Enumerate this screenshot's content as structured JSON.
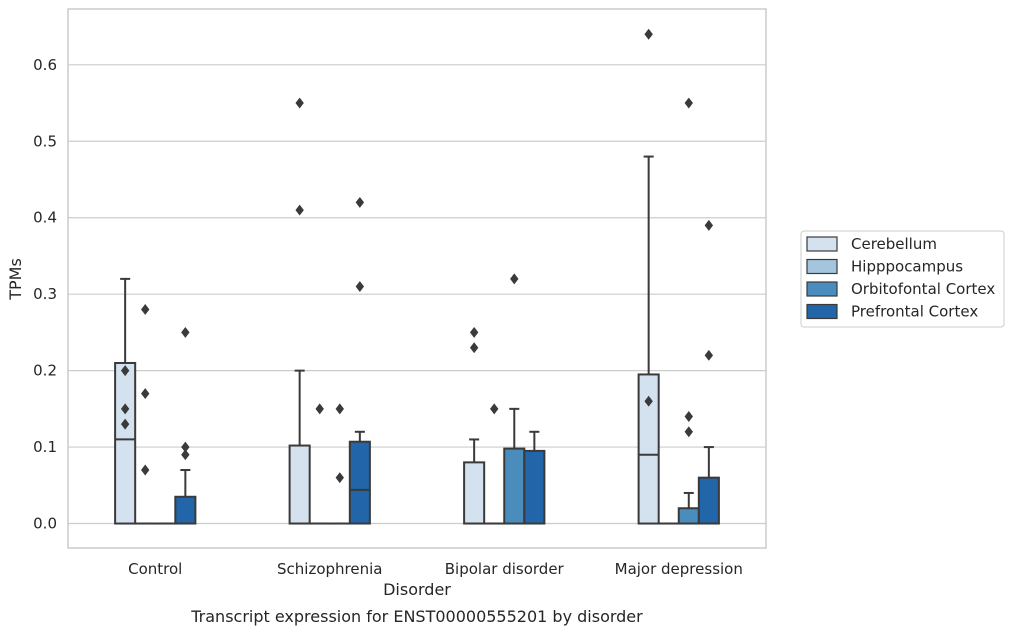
{
  "caption": "Transcript expression for ENST00000555201 by disorder",
  "chart_data": {
    "type": "boxplot",
    "xlabel": "Disorder",
    "ylabel": "TPMs",
    "ylim": [
      -0.032,
      0.673
    ],
    "yticks": [
      "0.0",
      "0.1",
      "0.2",
      "0.3",
      "0.4",
      "0.5",
      "0.6"
    ],
    "ytick_values": [
      0.0,
      0.1,
      0.2,
      0.3,
      0.4,
      0.5,
      0.6
    ],
    "grid": "horizontal",
    "legend_position": "right",
    "categories": [
      "Control",
      "Schizophrenia",
      "Bipolar disorder",
      "Major depression"
    ],
    "series": [
      {
        "name": "Cerebellum",
        "color": "#d4e2f0",
        "boxes": [
          {
            "q1": 0.0,
            "median": 0.11,
            "q3": 0.21,
            "whislo": 0.0,
            "whishi": 0.32,
            "fliers": [
              0.2,
              0.15,
              0.13
            ]
          },
          {
            "q1": 0.0,
            "median": 0.0,
            "q3": 0.102,
            "whislo": 0.0,
            "whishi": 0.2,
            "fliers": [
              0.55,
              0.41
            ]
          },
          {
            "q1": 0.0,
            "median": 0.0,
            "q3": 0.08,
            "whislo": 0.0,
            "whishi": 0.11,
            "fliers": [
              0.25,
              0.23
            ]
          },
          {
            "q1": 0.0,
            "median": 0.09,
            "q3": 0.195,
            "whislo": 0.0,
            "whishi": 0.48,
            "fliers": [
              0.64,
              0.16
            ]
          }
        ]
      },
      {
        "name": "Hipppocampus",
        "color": "#a3c6de",
        "boxes": [
          {
            "q1": 0.0,
            "median": 0.0,
            "q3": 0.0,
            "whislo": 0.0,
            "whishi": 0.0,
            "fliers": [
              0.28,
              0.17,
              0.07
            ]
          },
          {
            "q1": 0.0,
            "median": 0.0,
            "q3": 0.0,
            "whislo": 0.0,
            "whishi": 0.0,
            "fliers": [
              0.15
            ]
          },
          {
            "q1": 0.0,
            "median": 0.0,
            "q3": 0.0,
            "whislo": 0.0,
            "whishi": 0.0,
            "fliers": [
              0.15
            ]
          },
          {
            "q1": 0.0,
            "median": 0.0,
            "q3": 0.0,
            "whislo": 0.0,
            "whishi": 0.0,
            "fliers": []
          }
        ]
      },
      {
        "name": "Orbitofontal Cortex",
        "color": "#4a8dbd",
        "boxes": [
          {
            "q1": 0.0,
            "median": 0.0,
            "q3": 0.0,
            "whislo": 0.0,
            "whishi": 0.0,
            "fliers": []
          },
          {
            "q1": 0.0,
            "median": 0.0,
            "q3": 0.0,
            "whislo": 0.0,
            "whishi": 0.0,
            "fliers": [
              0.15,
              0.06
            ]
          },
          {
            "q1": 0.0,
            "median": 0.0,
            "q3": 0.098,
            "whislo": 0.0,
            "whishi": 0.15,
            "fliers": [
              0.32
            ]
          },
          {
            "q1": 0.0,
            "median": 0.0,
            "q3": 0.02,
            "whislo": 0.0,
            "whishi": 0.04,
            "fliers": [
              0.55,
              0.14,
              0.12
            ]
          }
        ]
      },
      {
        "name": "Prefrontal Cortex",
        "color": "#2265a8",
        "boxes": [
          {
            "q1": 0.0,
            "median": 0.0,
            "q3": 0.035,
            "whislo": 0.0,
            "whishi": 0.07,
            "fliers": [
              0.25,
              0.1,
              0.09
            ]
          },
          {
            "q1": 0.0,
            "median": 0.044,
            "q3": 0.107,
            "whislo": 0.0,
            "whishi": 0.12,
            "fliers": [
              0.42,
              0.31
            ]
          },
          {
            "q1": 0.0,
            "median": 0.0,
            "q3": 0.095,
            "whislo": 0.0,
            "whishi": 0.12,
            "fliers": []
          },
          {
            "q1": 0.0,
            "median": 0.0,
            "q3": 0.06,
            "whislo": 0.0,
            "whishi": 0.1,
            "fliers": [
              0.39,
              0.22
            ]
          }
        ]
      }
    ]
  }
}
